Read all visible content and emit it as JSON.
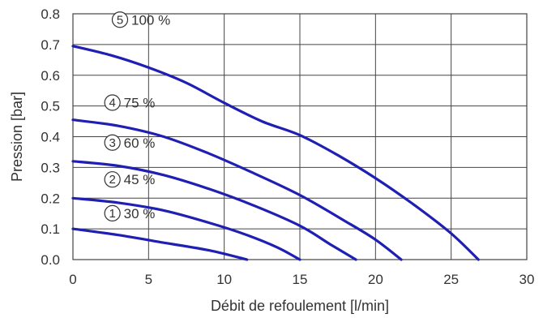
{
  "chart_data": {
    "type": "line",
    "xlabel": "Débit de refoulement [l/min]",
    "ylabel": "Pression [bar]",
    "xlim": [
      0,
      30
    ],
    "ylim": [
      0,
      0.8
    ],
    "x_ticks": [
      "0",
      "5",
      "10",
      "15",
      "20",
      "25",
      "30"
    ],
    "y_ticks": [
      "0.0",
      "0.1",
      "0.2",
      "0.3",
      "0.4",
      "0.5",
      "0.6",
      "0.7",
      "0.8"
    ],
    "grid": true,
    "line_color": "#1f1fb4",
    "series": [
      {
        "name": "30 %",
        "marker": "1",
        "label_at": [
          1,
          0.135
        ],
        "points": [
          [
            0,
            0.1
          ],
          [
            3,
            0.08
          ],
          [
            6,
            0.055
          ],
          [
            9,
            0.03
          ],
          [
            11.5,
            0.0
          ]
        ]
      },
      {
        "name": "45 %",
        "marker": "2",
        "label_at": [
          1,
          0.245
        ],
        "points": [
          [
            0,
            0.2
          ],
          [
            3,
            0.185
          ],
          [
            6,
            0.16
          ],
          [
            9,
            0.12
          ],
          [
            11.5,
            0.08
          ],
          [
            13.5,
            0.04
          ],
          [
            15,
            0.0
          ]
        ]
      },
      {
        "name": "60 %",
        "marker": "3",
        "label_at": [
          1,
          0.365
        ],
        "points": [
          [
            0,
            0.32
          ],
          [
            3,
            0.305
          ],
          [
            6,
            0.275
          ],
          [
            9,
            0.23
          ],
          [
            12,
            0.175
          ],
          [
            15,
            0.11
          ],
          [
            17,
            0.05
          ],
          [
            18.7,
            0.0
          ]
        ]
      },
      {
        "name": "75 %",
        "marker": "4",
        "label_at": [
          1,
          0.495
        ],
        "points": [
          [
            0,
            0.455
          ],
          [
            3,
            0.435
          ],
          [
            6,
            0.4
          ],
          [
            9,
            0.345
          ],
          [
            12,
            0.28
          ],
          [
            15,
            0.21
          ],
          [
            18,
            0.125
          ],
          [
            20,
            0.065
          ],
          [
            21.7,
            0.0
          ]
        ]
      },
      {
        "name": "100 %",
        "marker": "5",
        "label_at": [
          1.5,
          0.765
        ],
        "points": [
          [
            0,
            0.695
          ],
          [
            2.5,
            0.665
          ],
          [
            5,
            0.625
          ],
          [
            7.5,
            0.575
          ],
          [
            10,
            0.51
          ],
          [
            12.5,
            0.45
          ],
          [
            15,
            0.405
          ],
          [
            17.5,
            0.34
          ],
          [
            20,
            0.265
          ],
          [
            22.5,
            0.18
          ],
          [
            25,
            0.085
          ],
          [
            26.8,
            0.0
          ]
        ]
      }
    ]
  }
}
